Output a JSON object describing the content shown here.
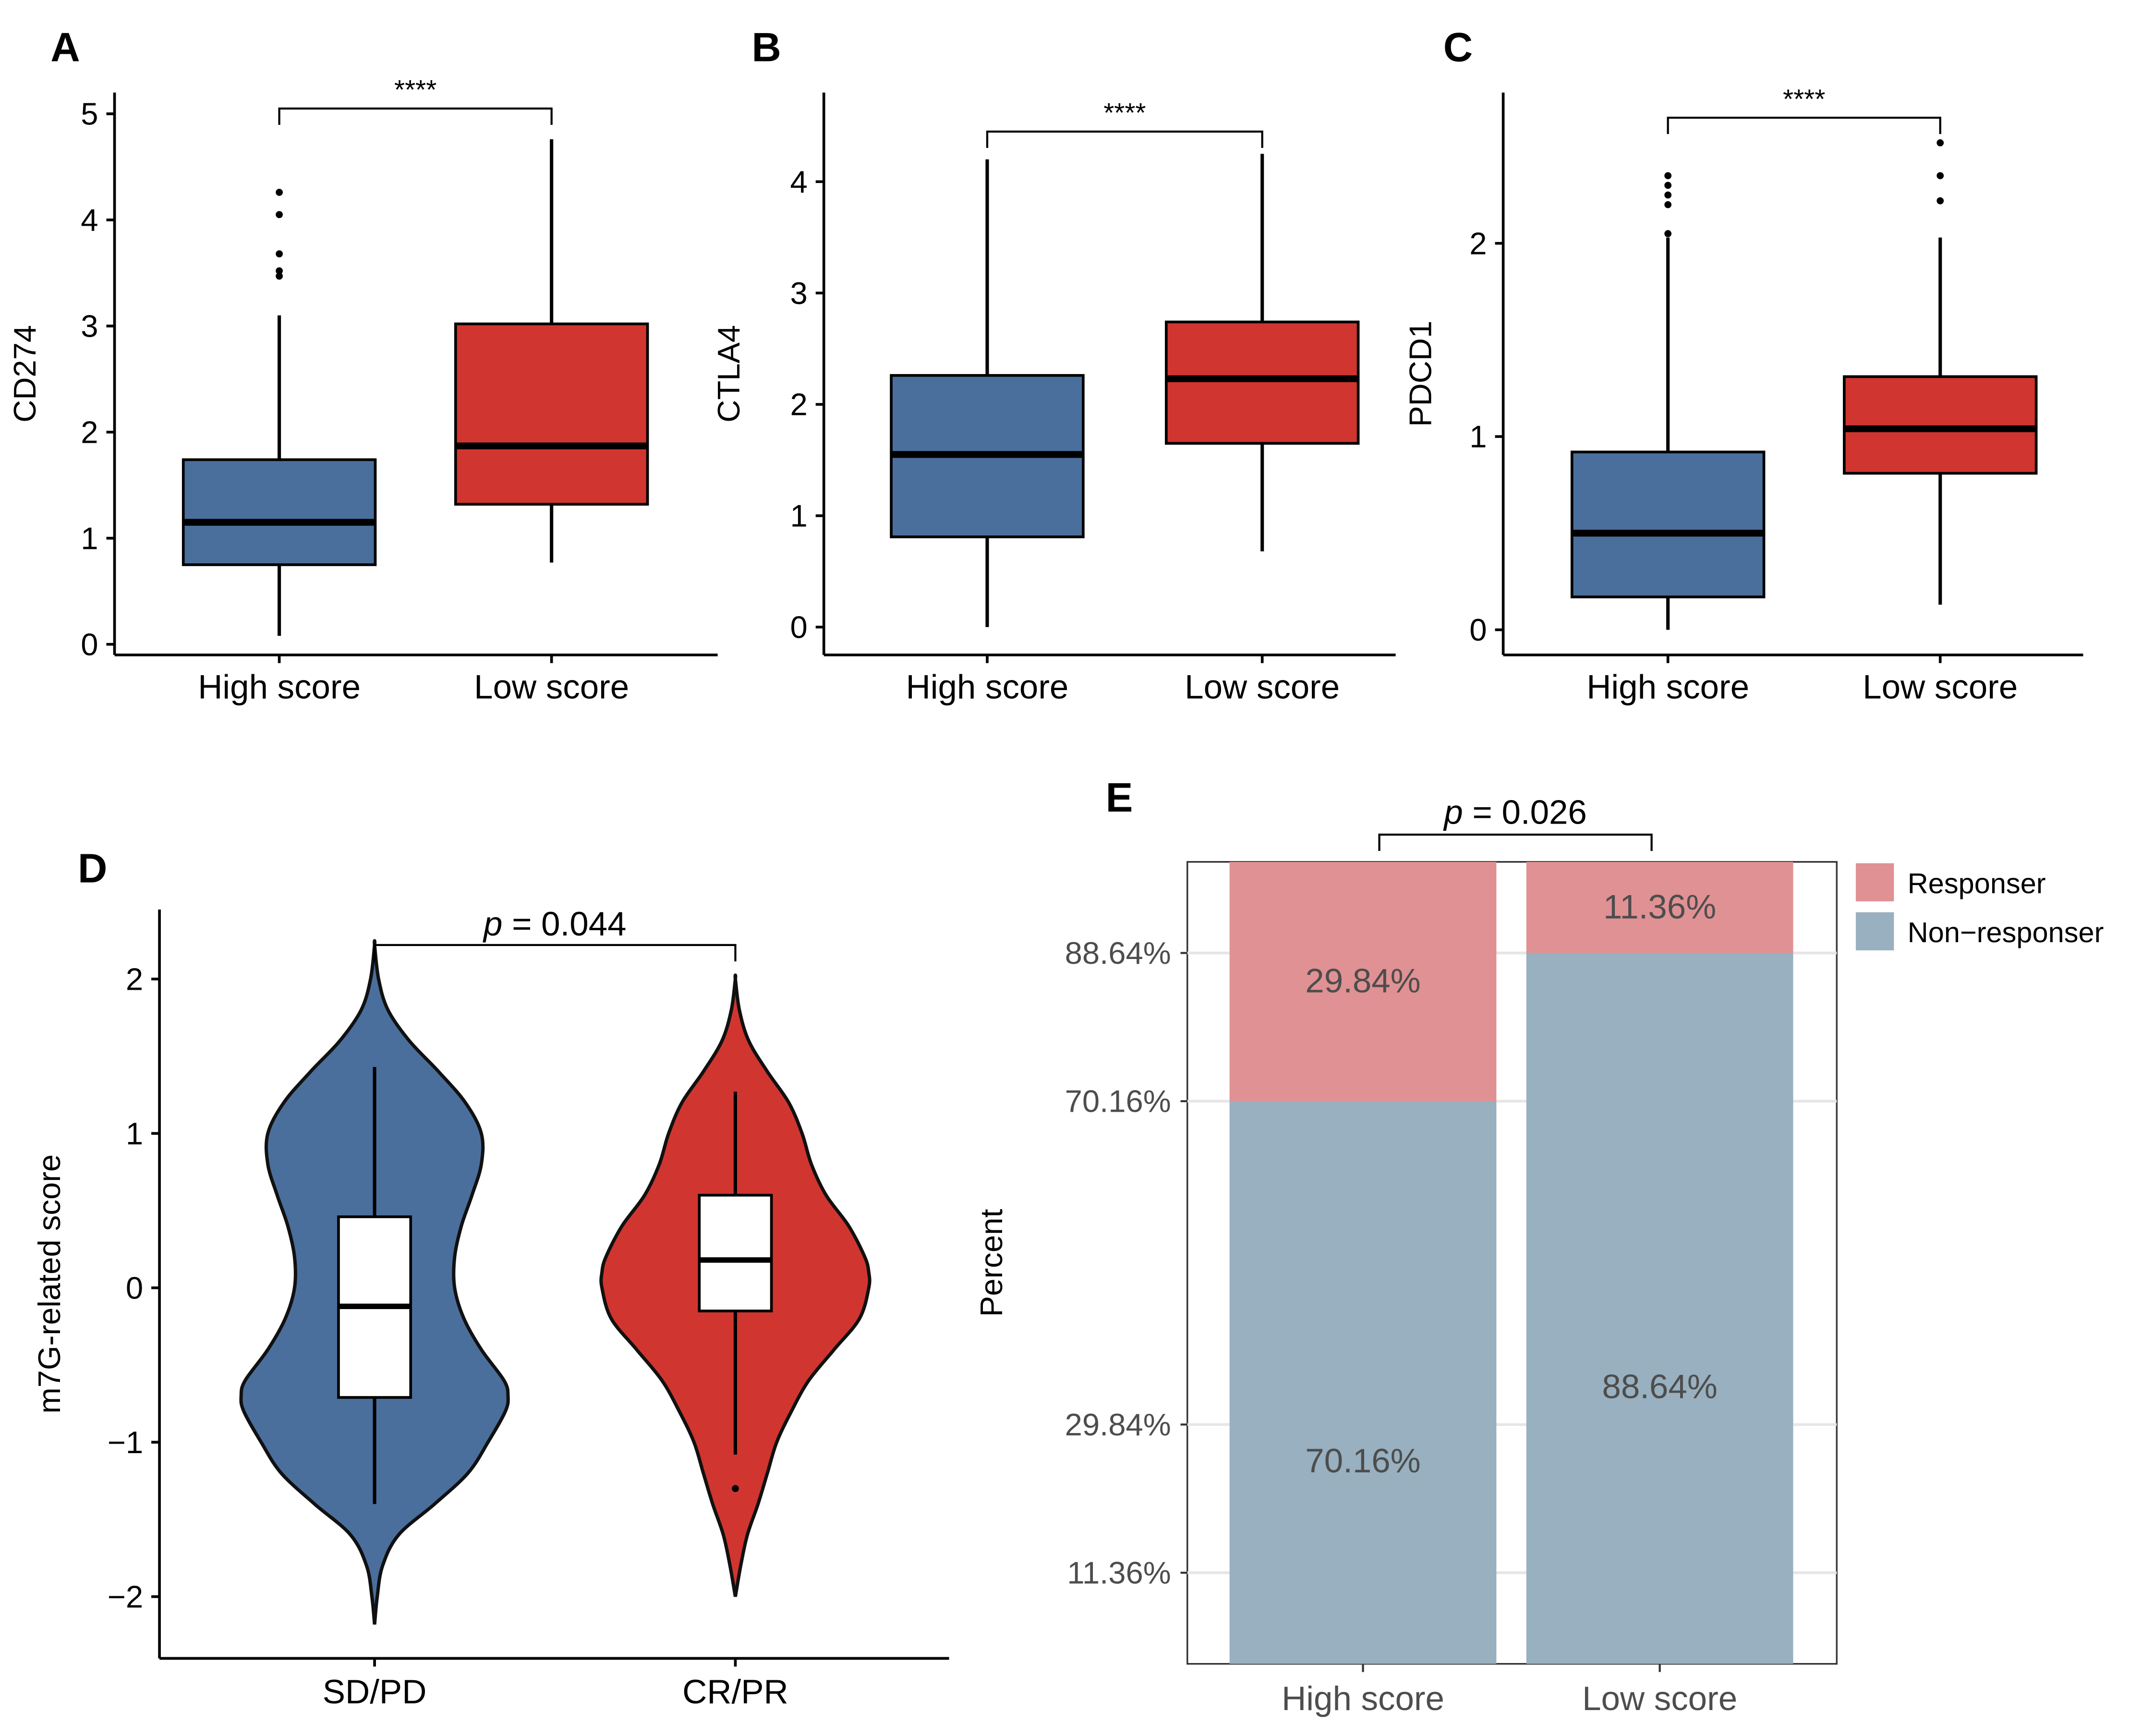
{
  "figure": {
    "colors": {
      "high": "#4a6f9c",
      "low": "#d0362f",
      "responser": "#e09193",
      "non_responser": "#98b0bf",
      "axis": "#000000",
      "grid": "#e6e6e6",
      "violin_box": "#ffffff"
    }
  },
  "chart_data": [
    {
      "id": "A",
      "type": "box",
      "panel_label": "A",
      "ylabel": "CD274",
      "categories": [
        "High score",
        "Low score"
      ],
      "ylim": [
        -0.1,
        5.2
      ],
      "yticks": [
        0,
        1,
        2,
        3,
        4,
        5
      ],
      "ytick_labels": [
        "0",
        "1",
        "2",
        "3",
        "4",
        "5"
      ],
      "boxes": [
        {
          "group": "High score",
          "min": 0.08,
          "q1": 0.75,
          "median": 1.15,
          "q3": 1.74,
          "max": 3.1,
          "outliers": [
            3.47,
            3.52,
            3.68,
            4.05,
            4.26
          ]
        },
        {
          "group": "Low score",
          "min": 0.77,
          "q1": 1.32,
          "median": 1.87,
          "q3": 3.02,
          "max": 4.76,
          "outliers": []
        }
      ],
      "significance": {
        "pair": [
          "High score",
          "Low score"
        ],
        "y": 5.05,
        "label": "****"
      }
    },
    {
      "id": "B",
      "type": "box",
      "panel_label": "B",
      "ylabel": "CTLA4",
      "categories": [
        "High score",
        "Low score"
      ],
      "ylim": [
        -0.25,
        4.8
      ],
      "yticks": [
        0,
        1,
        2,
        3,
        4
      ],
      "ytick_labels": [
        "0",
        "1",
        "2",
        "3",
        "4"
      ],
      "boxes": [
        {
          "group": "High score",
          "min": 0.0,
          "q1": 0.81,
          "median": 1.55,
          "q3": 2.26,
          "max": 4.2,
          "outliers": []
        },
        {
          "group": "Low score",
          "min": 0.68,
          "q1": 1.65,
          "median": 2.23,
          "q3": 2.74,
          "max": 4.25,
          "outliers": []
        }
      ],
      "significance": {
        "pair": [
          "High score",
          "Low score"
        ],
        "y": 4.45,
        "label": "****"
      }
    },
    {
      "id": "C",
      "type": "box",
      "panel_label": "C",
      "ylabel": "PDCD1",
      "categories": [
        "High score",
        "Low score"
      ],
      "ylim": [
        -0.13,
        2.78
      ],
      "yticks": [
        0,
        1,
        2
      ],
      "ytick_labels": [
        "0",
        "1",
        "2"
      ],
      "boxes": [
        {
          "group": "High score",
          "min": 0.0,
          "q1": 0.17,
          "median": 0.5,
          "q3": 0.92,
          "max": 2.03,
          "outliers": [
            2.05,
            2.2,
            2.25,
            2.3,
            2.35
          ]
        },
        {
          "group": "Low score",
          "min": 0.13,
          "q1": 0.81,
          "median": 1.04,
          "q3": 1.31,
          "max": 2.03,
          "outliers": [
            2.22,
            2.35,
            2.52
          ]
        }
      ],
      "significance": {
        "pair": [
          "High score",
          "Low score"
        ],
        "y": 2.65,
        "label": "****"
      }
    },
    {
      "id": "D",
      "type": "violin",
      "panel_label": "D",
      "ylabel": "m7G-related score",
      "categories": [
        "SD/PD",
        "CR/PR"
      ],
      "ylim": [
        -2.4,
        2.45
      ],
      "yticks": [
        -2,
        -1,
        0,
        1,
        2
      ],
      "ytick_labels": [
        "−2",
        "−1",
        "0",
        "1",
        "2"
      ],
      "violins": [
        {
          "group": "SD/PD",
          "y": [
            -2.18,
            -2.0,
            -1.8,
            -1.6,
            -1.4,
            -1.2,
            -1.0,
            -0.8,
            -0.7,
            -0.6,
            -0.4,
            -0.2,
            0.0,
            0.2,
            0.4,
            0.6,
            0.8,
            1.0,
            1.2,
            1.4,
            1.6,
            1.8,
            2.0,
            2.22
          ],
          "width": [
            0.0,
            0.02,
            0.06,
            0.18,
            0.45,
            0.7,
            0.85,
            0.98,
            1.0,
            0.97,
            0.8,
            0.67,
            0.6,
            0.6,
            0.65,
            0.73,
            0.8,
            0.8,
            0.68,
            0.48,
            0.26,
            0.1,
            0.03,
            0.0
          ],
          "box": {
            "min": -1.4,
            "q1": -0.71,
            "median": -0.12,
            "q3": 0.46,
            "max": 1.43,
            "outliers": []
          }
        },
        {
          "group": "CR/PR",
          "y": [
            -2.0,
            -1.8,
            -1.6,
            -1.4,
            -1.2,
            -1.0,
            -0.8,
            -0.6,
            -0.4,
            -0.2,
            0.0,
            0.1,
            0.2,
            0.4,
            0.6,
            0.8,
            1.0,
            1.2,
            1.4,
            1.6,
            1.8,
            2.0
          ],
          "width": [
            0.0,
            0.04,
            0.09,
            0.17,
            0.24,
            0.31,
            0.42,
            0.55,
            0.74,
            0.93,
            1.0,
            1.0,
            0.97,
            0.85,
            0.68,
            0.57,
            0.5,
            0.4,
            0.24,
            0.1,
            0.03,
            0.0
          ],
          "box": {
            "min": -1.08,
            "q1": -0.15,
            "median": 0.18,
            "q3": 0.6,
            "max": 1.27,
            "outliers": [
              -1.3
            ]
          }
        }
      ],
      "significance": {
        "pair": [
          "SD/PD",
          "CR/PR"
        ],
        "y": 2.22,
        "label_p": "p",
        "label_rest": " = 0.044"
      }
    },
    {
      "id": "E",
      "type": "stacked_bar",
      "panel_label": "E",
      "ylabel": "Percent",
      "categories": [
        "High score",
        "Low score"
      ],
      "ylim": [
        0,
        100
      ],
      "yticks": [
        11.36,
        29.84,
        70.16,
        88.64
      ],
      "ytick_labels": [
        "11.36%",
        "29.84%",
        "70.16%",
        "88.64%"
      ],
      "series": [
        {
          "name": "Non−responser",
          "values": [
            70.16,
            88.64
          ],
          "labels": [
            "70.16%",
            "88.64%"
          ]
        },
        {
          "name": "Responser",
          "values": [
            29.84,
            11.36
          ],
          "labels": [
            "29.84%",
            "11.36%"
          ]
        }
      ],
      "legend": {
        "position": "top-right",
        "entries": [
          "Responser",
          "Non−responser"
        ]
      },
      "significance": {
        "pair": [
          "High score",
          "Low score"
        ],
        "label_p": "p",
        "label_rest": " = 0.026"
      }
    }
  ]
}
